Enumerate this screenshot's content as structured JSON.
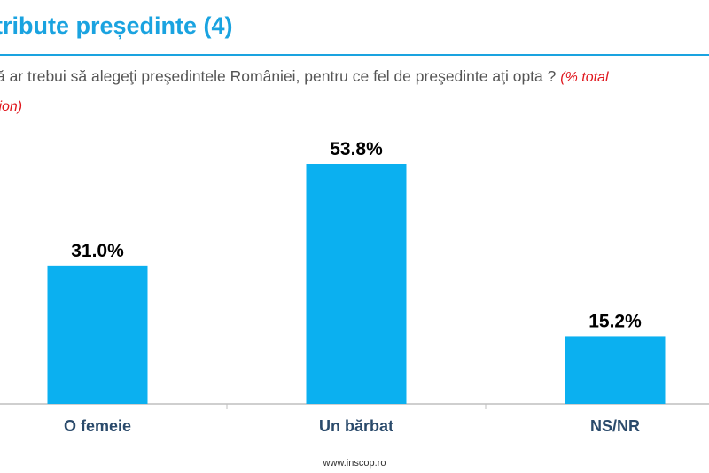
{
  "header": {
    "title": "tribute președinte (4)",
    "question": "ă ar trebui să alegeţi preşedintele României, pentru ce fel de preşedinte aţi opta ?",
    "note_line1": "(% total",
    "note_line2": "tion)"
  },
  "footer": {
    "url": "www.inscop.ro"
  },
  "colors": {
    "accent": "#1aa3e0",
    "bar": "#0bb0f0",
    "label": "#2a4a6b",
    "note": "#e0161d"
  },
  "chart_data": {
    "type": "bar",
    "categories": [
      "O femeie",
      "Un bărbat",
      "NS/NR"
    ],
    "values": [
      31.0,
      53.8,
      15.2
    ],
    "value_labels": [
      "31.0%",
      "53.8%",
      "15.2%"
    ],
    "title": "tribute președinte (4)",
    "xlabel": "",
    "ylabel": "",
    "ylim": [
      0,
      60
    ],
    "grid": false
  }
}
